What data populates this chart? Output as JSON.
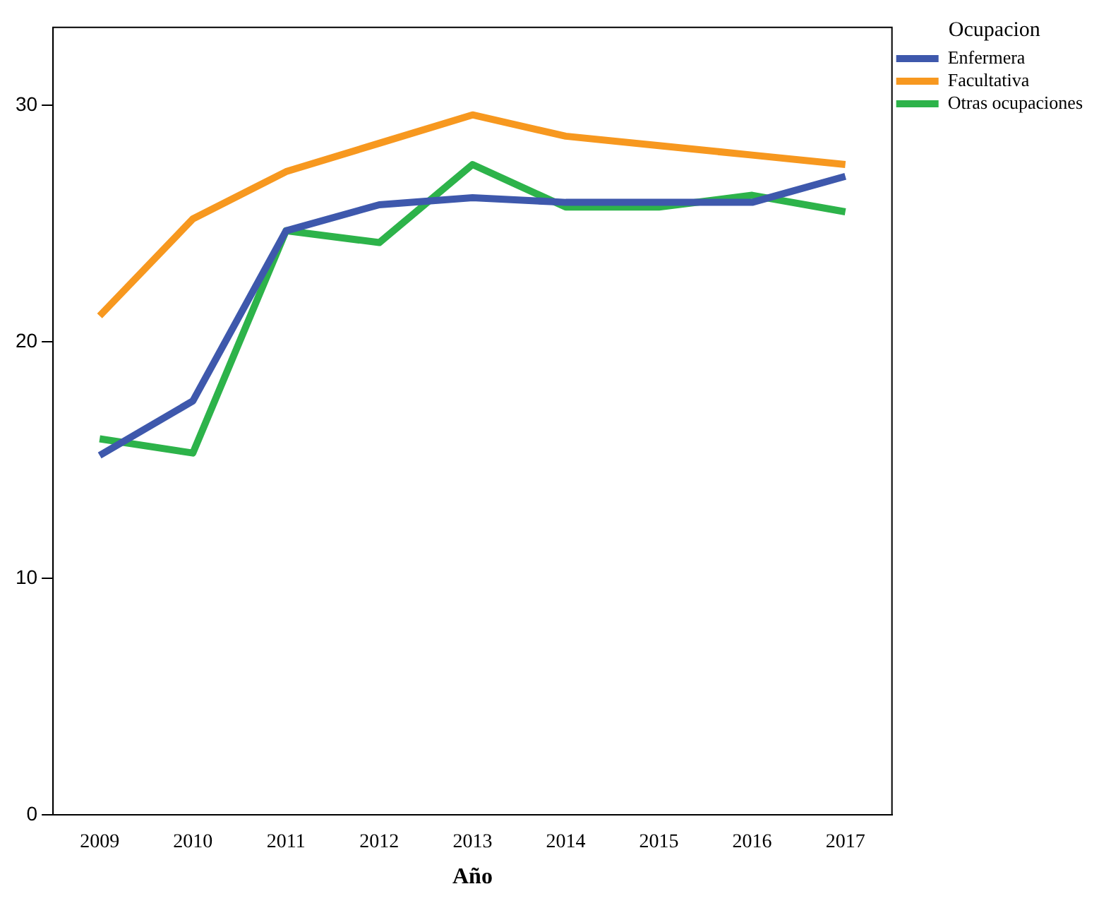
{
  "chart_data": {
    "type": "line",
    "xlabel": "Año",
    "legend_title": "Ocupacion",
    "legend": "right",
    "grid": false,
    "line_style": "solid",
    "marker": "none",
    "categories": [
      "2009",
      "2010",
      "2011",
      "2012",
      "2013",
      "2014",
      "2015",
      "2016",
      "2017"
    ],
    "ylim": [
      0,
      33.3
    ],
    "yticks": [
      0,
      10,
      20,
      30
    ],
    "series": [
      {
        "name": "Enfermera",
        "color": "#3e58ac",
        "values": [
          15.2,
          17.5,
          24.7,
          25.8,
          26.1,
          25.9,
          25.9,
          25.9,
          27.0
        ]
      },
      {
        "name": "Facultativa",
        "color": "#f7981f",
        "values": [
          21.1,
          25.2,
          27.2,
          28.4,
          29.6,
          28.7,
          28.3,
          27.9,
          27.5
        ]
      },
      {
        "name": "Otras ocupaciones",
        "color": "#2db34a",
        "values": [
          15.9,
          15.3,
          24.7,
          24.2,
          27.5,
          25.7,
          25.7,
          26.2,
          25.5
        ]
      }
    ]
  }
}
